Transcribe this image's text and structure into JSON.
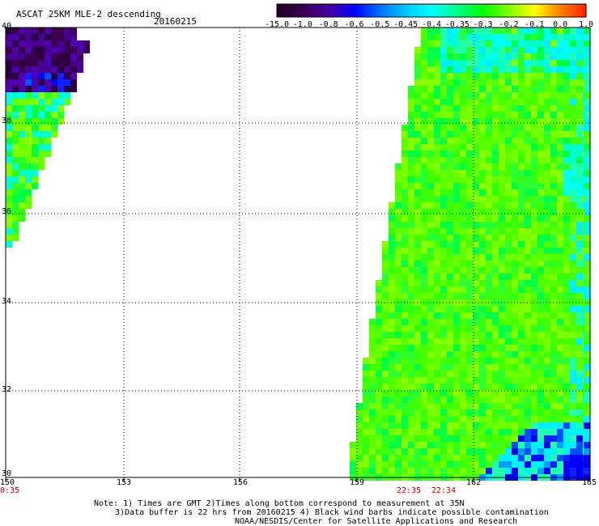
{
  "header": {
    "title": "ASCAT 25KM MLE-2 descending",
    "date": "20160215"
  },
  "colorbar": {
    "labels": [
      "-15.0",
      "-1.0",
      "-0.8",
      "-0.6",
      "-0.5",
      "-0.45",
      "-0.4",
      "-0.35",
      "-0.3",
      "-0.2",
      "-0.1",
      "0.0",
      "1.0"
    ],
    "colors": [
      "#200020",
      "#3a0050",
      "#4a00a0",
      "#0000ff",
      "#0070ff",
      "#00c8ff",
      "#00ffff",
      "#00ff88",
      "#00ff00",
      "#80ff00",
      "#ffff00",
      "#ff8000",
      "#ff2000"
    ]
  },
  "axes": {
    "lon_labels": [
      "150",
      "153",
      "156",
      "159",
      "162",
      "165"
    ],
    "lat_labels": [
      "40",
      "38",
      "36",
      "34",
      "32",
      "30"
    ]
  },
  "times": {
    "left": "0:35",
    "mid1": "22:35",
    "mid2": "22:34"
  },
  "notes": {
    "line1": "Note: 1) Times are GMT 2)Times along bottom correspond to measurement at 35N",
    "line2": "3)Data buffer is 22 hrs from 20160215 4) Black wind barbs indicate possible contamination",
    "line3": "NOAA/NESDIS/Center for Satellite Applications and Research"
  }
}
